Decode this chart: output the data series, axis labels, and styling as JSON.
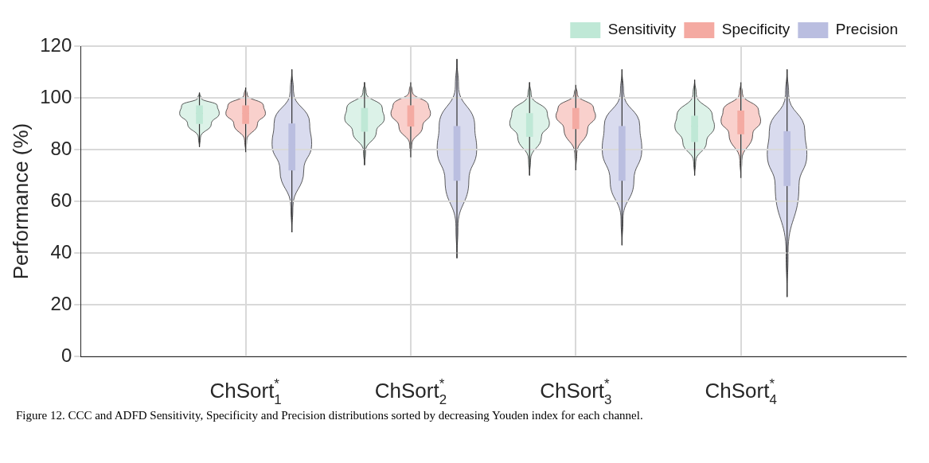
{
  "chart_data": {
    "type": "box",
    "ylabel": "Performance (%)",
    "categories": [
      "ChSort$^{*}$$_{1}$",
      "ChSort$^{*}$$_{2}$",
      "ChSort$^{*}$$_{3}$",
      "ChSort$^{*}$$_{4}$"
    ],
    "ylim": [
      0,
      120
    ],
    "yticks": [
      0,
      20,
      40,
      60,
      80,
      100,
      120
    ],
    "grid": true,
    "legend": "top right",
    "series": [
      {
        "name": "Sensitivity",
        "color": "#bfe8d6",
        "boxes": [
          {
            "low": 81,
            "q1": 90,
            "median": 94,
            "q3": 97,
            "high": 102
          },
          {
            "low": 74,
            "q1": 87,
            "median": 92,
            "q3": 96,
            "high": 106
          },
          {
            "low": 70,
            "q1": 85,
            "median": 90,
            "q3": 94,
            "high": 106
          },
          {
            "low": 70,
            "q1": 83,
            "median": 89,
            "q3": 93,
            "high": 107
          }
        ]
      },
      {
        "name": "Specificity",
        "color": "#f4aaa2",
        "boxes": [
          {
            "low": 79,
            "q1": 90,
            "median": 94,
            "q3": 97,
            "high": 104
          },
          {
            "low": 77,
            "q1": 89,
            "median": 94,
            "q3": 97,
            "high": 106
          },
          {
            "low": 72,
            "q1": 88,
            "median": 93,
            "q3": 96,
            "high": 105
          },
          {
            "low": 69,
            "q1": 86,
            "median": 91,
            "q3": 95,
            "high": 106
          }
        ]
      },
      {
        "name": "Precision",
        "color": "#babee0",
        "boxes": [
          {
            "low": 48,
            "q1": 72,
            "median": 82,
            "q3": 90,
            "high": 111
          },
          {
            "low": 38,
            "q1": 68,
            "median": 80,
            "q3": 89,
            "high": 115
          },
          {
            "low": 43,
            "q1": 68,
            "median": 80,
            "q3": 89,
            "high": 111
          },
          {
            "low": 23,
            "q1": 66,
            "median": 78,
            "q3": 87,
            "high": 111
          }
        ]
      }
    ],
    "annotations": [
      "Figure 12. CCC and ADFD Sensitivity, Specificity and Precision distributions sorted by decreasing Youden index for each channel."
    ]
  }
}
